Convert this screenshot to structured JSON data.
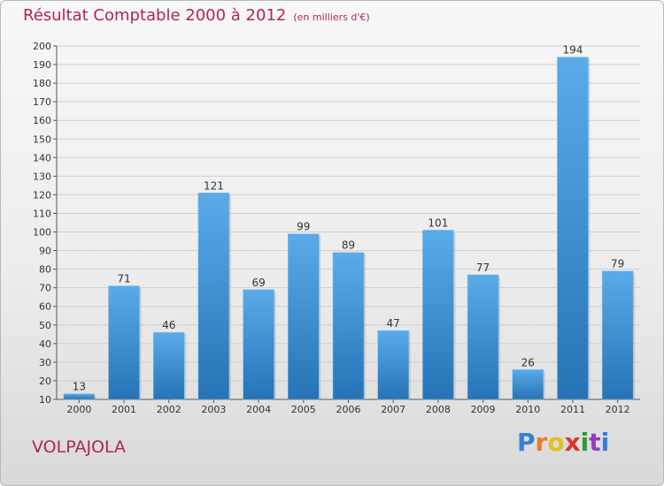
{
  "header": {
    "title": "Résultat Comptable 2000 à 2012",
    "subtitle": "(en milliers d'€)"
  },
  "footer": {
    "town": "VOLPAJOLA",
    "logo_text": "Proxiti"
  },
  "colors": {
    "title": "#b0245a",
    "bar_top": "#5aabea",
    "bar_bottom": "#2673b5",
    "grid": "#cfcfcf"
  },
  "chart_data": {
    "type": "bar",
    "title": "Résultat Comptable 2000 à 2012",
    "subtitle": "(en milliers d'€)",
    "xlabel": "",
    "ylabel": "",
    "categories": [
      "2000",
      "2001",
      "2002",
      "2003",
      "2004",
      "2005",
      "2006",
      "2007",
      "2008",
      "2009",
      "2010",
      "2011",
      "2012"
    ],
    "values": [
      13,
      71,
      46,
      121,
      69,
      99,
      89,
      47,
      101,
      77,
      26,
      194,
      79
    ],
    "ylim": [
      10,
      200
    ],
    "yticks": [
      10,
      20,
      30,
      40,
      50,
      60,
      70,
      80,
      90,
      100,
      110,
      120,
      130,
      140,
      150,
      160,
      170,
      180,
      190,
      200
    ],
    "grid": true
  }
}
